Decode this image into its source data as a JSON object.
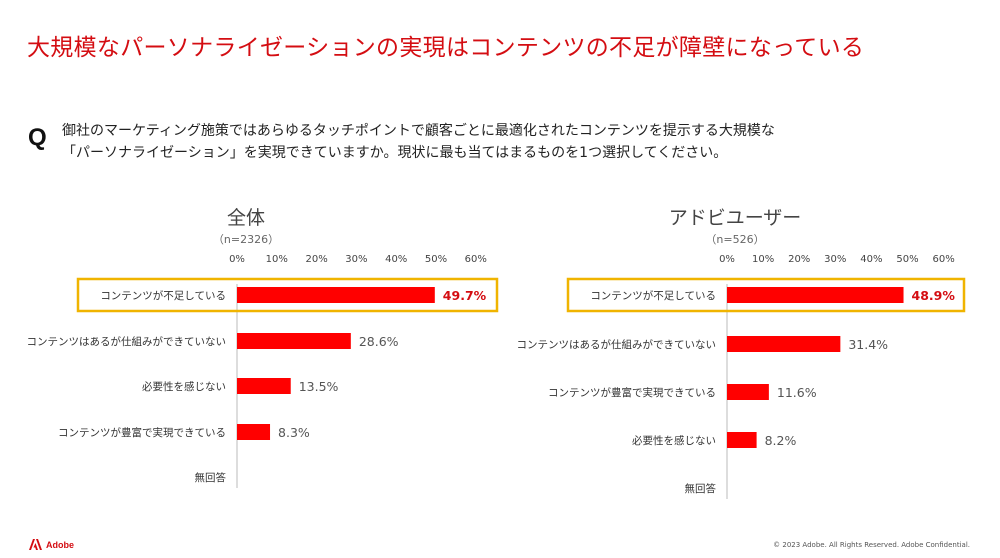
{
  "title": "大規模なパーソナライゼーションの実現はコンテンツの不足が障壁になっている",
  "question": {
    "mark": "Q",
    "line1": "御社のマーケティング施策ではあらゆるタッチポイントで顧客ごとに最適化されたコンテンツを提示する大規模な",
    "line2": "「パーソナライゼーション」を実現できていますか。現状に最も当てはまるものを1つ選択してください。"
  },
  "colors": {
    "bar": "#ff0000",
    "highlight": "#f0b400",
    "title": "#d40d12",
    "highlight_label": "#d40d12"
  },
  "chart_data": [
    {
      "type": "bar",
      "orientation": "horizontal",
      "title": "全体",
      "subtitle": "（n=2326）",
      "xlim": [
        0,
        60
      ],
      "ticks": [
        "0%",
        "10%",
        "20%",
        "30%",
        "40%",
        "50%",
        "60%"
      ],
      "categories": [
        "コンテンツが不足している",
        "コンテンツはあるが仕組みができていない",
        "必要性を感じない",
        "コンテンツが豊富で実現できている",
        "無回答"
      ],
      "values": [
        49.7,
        28.6,
        13.5,
        8.3,
        null
      ],
      "labels": [
        "49.7%",
        "28.6%",
        "13.5%",
        "8.3%",
        ""
      ],
      "highlight_index": 0
    },
    {
      "type": "bar",
      "orientation": "horizontal",
      "title": "アドビユーザー",
      "subtitle": "（n=526）",
      "xlim": [
        0,
        60
      ],
      "ticks": [
        "0%",
        "10%",
        "20%",
        "30%",
        "40%",
        "50%",
        "60%"
      ],
      "categories": [
        "コンテンツが不足している",
        "コンテンツはあるが仕組みができていない",
        "コンテンツが豊富で実現できている",
        "必要性を感じない",
        "無回答"
      ],
      "values": [
        48.9,
        31.4,
        11.6,
        8.2,
        null
      ],
      "labels": [
        "48.9%",
        "31.4%",
        "11.6%",
        "8.2%",
        ""
      ],
      "highlight_index": 0
    }
  ],
  "footer": {
    "logo_text": "Adobe",
    "copyright": "© 2023 Adobe. All Rights Reserved. Adobe Confidential."
  }
}
